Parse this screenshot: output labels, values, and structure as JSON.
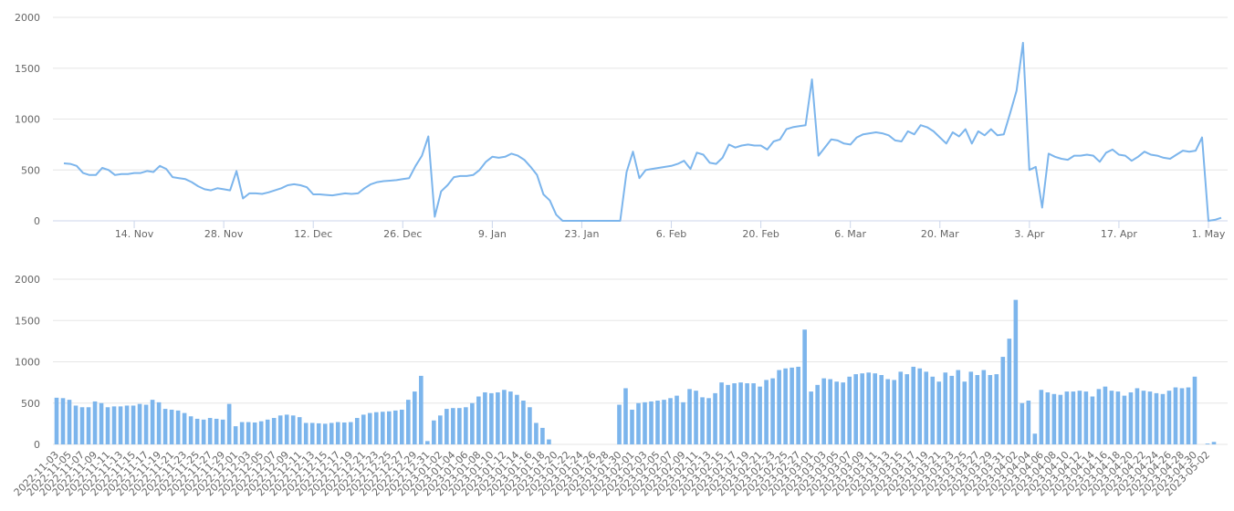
{
  "chart_data": [
    {
      "type": "line",
      "color": "#7cb5ec",
      "xlim": [
        "2022-11-03",
        "2023-05-03"
      ],
      "xticks": [
        {
          "value": "2022-11-14",
          "label": "14. Nov"
        },
        {
          "value": "2022-11-28",
          "label": "28. Nov"
        },
        {
          "value": "2022-12-12",
          "label": "12. Dec"
        },
        {
          "value": "2022-12-26",
          "label": "26. Dec"
        },
        {
          "value": "2023-01-09",
          "label": "9. Jan"
        },
        {
          "value": "2023-01-23",
          "label": "23. Jan"
        },
        {
          "value": "2023-02-06",
          "label": "6. Feb"
        },
        {
          "value": "2023-02-20",
          "label": "20. Feb"
        },
        {
          "value": "2023-03-06",
          "label": "6. Mar"
        },
        {
          "value": "2023-03-20",
          "label": "20. Mar"
        },
        {
          "value": "2023-04-03",
          "label": "3. Apr"
        },
        {
          "value": "2023-04-17",
          "label": "17. Apr"
        },
        {
          "value": "2023-05-01",
          "label": "1. May"
        }
      ],
      "ylim": [
        0,
        2000
      ],
      "yticks": [
        0,
        500,
        1000,
        1500,
        2000
      ],
      "grid": true,
      "values": [
        565,
        560,
        540,
        470,
        450,
        450,
        520,
        500,
        450,
        460,
        460,
        470,
        470,
        490,
        480,
        540,
        510,
        430,
        420,
        410,
        380,
        340,
        310,
        300,
        320,
        310,
        300,
        490,
        220,
        270,
        270,
        265,
        280,
        300,
        320,
        350,
        360,
        350,
        330,
        260,
        260,
        255,
        250,
        260,
        270,
        265,
        270,
        320,
        360,
        380,
        390,
        395,
        400,
        410,
        420,
        540,
        640,
        830,
        40,
        290,
        350,
        430,
        440,
        440,
        450,
        500,
        580,
        630,
        620,
        630,
        660,
        640,
        600,
        530,
        450,
        260,
        200,
        60,
        0,
        0,
        0,
        0,
        0,
        0,
        0,
        0,
        0,
        0,
        480,
        680,
        420,
        500,
        510,
        520,
        530,
        540,
        560,
        590,
        510,
        670,
        650,
        570,
        560,
        620,
        750,
        720,
        740,
        750,
        740,
        740,
        700,
        780,
        800,
        900,
        920,
        930,
        940,
        1390,
        640,
        720,
        800,
        790,
        760,
        750,
        820,
        850,
        860,
        870,
        860,
        840,
        790,
        780,
        880,
        850,
        940,
        920,
        880,
        820,
        760,
        870,
        830,
        900,
        760,
        880,
        840,
        900,
        840,
        850,
        1060,
        1280,
        1750,
        500,
        530,
        130,
        660,
        630,
        610,
        600,
        640,
        640,
        650,
        640,
        580,
        670,
        700,
        650,
        640,
        590,
        630,
        680,
        650,
        640,
        620,
        610,
        650,
        690,
        680,
        690,
        820,
        0,
        10,
        30
      ]
    },
    {
      "type": "bar",
      "color": "#7cb5ec",
      "ylim": [
        0,
        2000
      ],
      "yticks": [
        0,
        500,
        1000,
        1500,
        2000
      ],
      "grid": true,
      "categories": [
        "2022-11-03",
        null,
        "2022-11-05",
        null,
        "2022-11-07",
        null,
        "2022-11-09",
        null,
        "2022-11-11",
        null,
        "2022-11-13",
        null,
        "2022-11-15",
        null,
        "2022-11-17",
        null,
        "2022-11-19",
        null,
        "2022-11-21",
        null,
        "2022-11-23",
        null,
        "2022-11-25",
        null,
        "2022-11-27",
        null,
        "2022-11-29",
        null,
        "2022-12-01",
        null,
        "2022-12-03",
        null,
        "2022-12-05",
        null,
        "2022-12-07",
        null,
        "2022-12-09",
        null,
        "2022-12-11",
        null,
        "2022-12-13",
        null,
        "2022-12-15",
        null,
        "2022-12-17",
        null,
        "2022-12-19",
        null,
        "2022-12-21",
        null,
        "2022-12-23",
        null,
        "2022-12-25",
        null,
        "2022-12-27",
        null,
        "2022-12-29",
        null,
        "2022-12-31",
        null,
        "2023-01-02",
        null,
        "2023-01-04",
        null,
        "2023-01-06",
        null,
        "2023-01-08",
        null,
        "2023-01-10",
        null,
        "2023-01-12",
        null,
        "2023-01-14",
        null,
        "2023-01-16",
        null,
        "2023-01-18",
        null,
        "2023-01-20",
        null,
        "2023-01-22",
        null,
        "2023-01-24",
        null,
        "2023-01-26",
        null,
        "2023-01-28",
        null,
        "2023-01-30",
        null,
        "2023-02-01",
        null,
        "2023-02-03",
        null,
        "2023-02-05",
        null,
        "2023-02-07",
        null,
        "2023-02-09",
        null,
        "2023-02-11",
        null,
        "2023-02-13",
        null,
        "2023-02-15",
        null,
        "2023-02-17",
        null,
        "2023-02-19",
        null,
        "2023-02-21",
        null,
        "2023-02-23",
        null,
        "2023-02-25",
        null,
        "2023-02-27",
        null,
        "2023-03-01",
        null,
        "2023-03-03",
        null,
        "2023-03-05",
        null,
        "2023-03-07",
        null,
        "2023-03-09",
        null,
        "2023-03-11",
        null,
        "2023-03-13",
        null,
        "2023-03-15",
        null,
        "2023-03-17",
        null,
        "2023-03-19",
        null,
        "2023-03-21",
        null,
        "2023-03-23",
        null,
        "2023-03-25",
        null,
        "2023-03-27",
        null,
        "2023-03-29",
        null,
        "2023-03-31",
        null,
        "2023-04-02",
        null,
        "2023-04-04",
        null,
        "2023-04-06",
        null,
        "2023-04-08",
        null,
        "2023-04-10",
        null,
        "2023-04-12",
        null,
        "2023-04-14",
        null,
        "2023-04-16",
        null,
        "2023-04-18",
        null,
        "2023-04-20",
        null,
        "2023-04-22",
        null,
        "2023-04-24",
        null,
        "2023-04-26",
        null,
        "2023-04-28",
        null,
        "2023-04-30",
        null,
        "2023-05-02",
        null
      ],
      "values": [
        565,
        560,
        540,
        470,
        450,
        450,
        520,
        500,
        450,
        460,
        460,
        470,
        470,
        490,
        480,
        540,
        510,
        430,
        420,
        410,
        380,
        340,
        310,
        300,
        320,
        310,
        300,
        490,
        220,
        270,
        270,
        265,
        280,
        300,
        320,
        350,
        360,
        350,
        330,
        260,
        260,
        255,
        250,
        260,
        270,
        265,
        270,
        320,
        360,
        380,
        390,
        395,
        400,
        410,
        420,
        540,
        640,
        830,
        40,
        290,
        350,
        430,
        440,
        440,
        450,
        500,
        580,
        630,
        620,
        630,
        660,
        640,
        600,
        530,
        450,
        260,
        200,
        60,
        0,
        0,
        0,
        0,
        0,
        0,
        0,
        0,
        0,
        0,
        480,
        680,
        420,
        500,
        510,
        520,
        530,
        540,
        560,
        590,
        510,
        670,
        650,
        570,
        560,
        620,
        750,
        720,
        740,
        750,
        740,
        740,
        700,
        780,
        800,
        900,
        920,
        930,
        940,
        1390,
        640,
        720,
        800,
        790,
        760,
        750,
        820,
        850,
        860,
        870,
        860,
        840,
        790,
        780,
        880,
        850,
        940,
        920,
        880,
        820,
        760,
        870,
        830,
        900,
        760,
        880,
        840,
        900,
        840,
        850,
        1060,
        1280,
        1750,
        500,
        530,
        130,
        660,
        630,
        610,
        600,
        640,
        640,
        650,
        640,
        580,
        670,
        700,
        650,
        640,
        590,
        630,
        680,
        650,
        640,
        620,
        610,
        650,
        690,
        680,
        690,
        820,
        0,
        10,
        30
      ]
    }
  ]
}
